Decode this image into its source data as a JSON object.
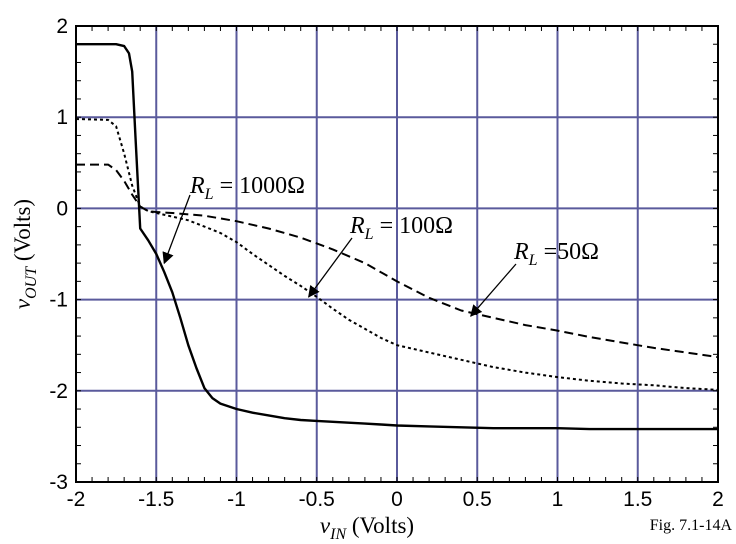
{
  "chart_data": {
    "type": "line",
    "xlabel": {
      "symbol": "v",
      "sub": "IN",
      "rest": " (Volts)"
    },
    "ylabel": {
      "symbol": "v",
      "sub": "OUT",
      "rest": " (Volts)"
    },
    "xlim": [
      -2,
      2
    ],
    "ylim": [
      -3,
      2
    ],
    "xticks": [
      -2,
      -1.5,
      -1,
      -0.5,
      0,
      0.5,
      1,
      1.5,
      2
    ],
    "xtick_labels": [
      "-2",
      "-1.5",
      "-1",
      "-0.5",
      "0",
      "0.5",
      "1",
      "1.5",
      "2"
    ],
    "yticks": [
      -3,
      -2,
      -1,
      0,
      1,
      2
    ],
    "ytick_labels": [
      "-3",
      "-2",
      "-1",
      "0",
      "1",
      "2"
    ],
    "grid": true,
    "grid_color": "#5a5a9c",
    "series": [
      {
        "name": "R_L = 1000Ω",
        "style": "solid",
        "x": [
          -2,
          -1.75,
          -1.7,
          -1.67,
          -1.65,
          -1.63,
          -1.6,
          -1.55,
          -1.5,
          -1.45,
          -1.4,
          -1.35,
          -1.3,
          -1.25,
          -1.2,
          -1.15,
          -1.1,
          -1.0,
          -0.9,
          -0.8,
          -0.7,
          -0.6,
          -0.5,
          -0.4,
          -0.3,
          -0.2,
          -0.1,
          0.0,
          0.2,
          0.4,
          0.6,
          0.8,
          1.0,
          1.2,
          1.4,
          1.6,
          1.8,
          2.0
        ],
        "y": [
          1.8,
          1.8,
          1.78,
          1.7,
          1.5,
          0.8,
          -0.22,
          -0.35,
          -0.5,
          -0.7,
          -0.92,
          -1.2,
          -1.5,
          -1.75,
          -1.97,
          -2.08,
          -2.14,
          -2.2,
          -2.24,
          -2.27,
          -2.3,
          -2.32,
          -2.33,
          -2.34,
          -2.35,
          -2.36,
          -2.37,
          -2.38,
          -2.39,
          -2.4,
          -2.41,
          -2.41,
          -2.41,
          -2.42,
          -2.42,
          -2.42,
          -2.42,
          -2.42
        ]
      },
      {
        "name": "R_L = 100Ω",
        "style": "dotted",
        "x": [
          -2,
          -1.8,
          -1.75,
          -1.7,
          -1.65,
          -1.6,
          -1.55,
          -1.5,
          -1.4,
          -1.3,
          -1.2,
          -1.1,
          -1.0,
          -0.9,
          -0.8,
          -0.7,
          -0.6,
          -0.5,
          -0.4,
          -0.3,
          -0.2,
          -0.1,
          0.0,
          0.2,
          0.4,
          0.6,
          0.8,
          1.0,
          1.2,
          1.4,
          1.6,
          1.8,
          2.0
        ],
        "y": [
          0.98,
          0.97,
          0.9,
          0.6,
          0.25,
          0.02,
          -0.03,
          -0.05,
          -0.09,
          -0.13,
          -0.2,
          -0.27,
          -0.37,
          -0.5,
          -0.62,
          -0.74,
          -0.85,
          -0.97,
          -1.1,
          -1.22,
          -1.32,
          -1.42,
          -1.5,
          -1.58,
          -1.66,
          -1.74,
          -1.8,
          -1.85,
          -1.89,
          -1.92,
          -1.94,
          -1.97,
          -1.99
        ]
      },
      {
        "name": "R_L =50Ω",
        "style": "dashed",
        "x": [
          -2,
          -1.8,
          -1.75,
          -1.7,
          -1.65,
          -1.6,
          -1.55,
          -1.5,
          -1.4,
          -1.2,
          -1.0,
          -0.8,
          -0.6,
          -0.4,
          -0.2,
          0.0,
          0.2,
          0.4,
          0.6,
          0.8,
          1.0,
          1.2,
          1.4,
          1.6,
          1.8,
          2.0
        ],
        "y": [
          0.48,
          0.48,
          0.42,
          0.3,
          0.15,
          0.02,
          -0.03,
          -0.04,
          -0.05,
          -0.08,
          -0.14,
          -0.22,
          -0.32,
          -0.45,
          -0.6,
          -0.8,
          -0.98,
          -1.12,
          -1.2,
          -1.28,
          -1.34,
          -1.41,
          -1.47,
          -1.53,
          -1.58,
          -1.63
        ]
      }
    ],
    "annotations": [
      {
        "symbol": "R",
        "sub": "L",
        "rest": " = 1000Ω"
      },
      {
        "symbol": "R",
        "sub": "L",
        "rest": " = 100Ω"
      },
      {
        "symbol": "R",
        "sub": "L",
        "rest": " =50Ω"
      }
    ],
    "figure_label": "Fig. 7.1-14A"
  }
}
